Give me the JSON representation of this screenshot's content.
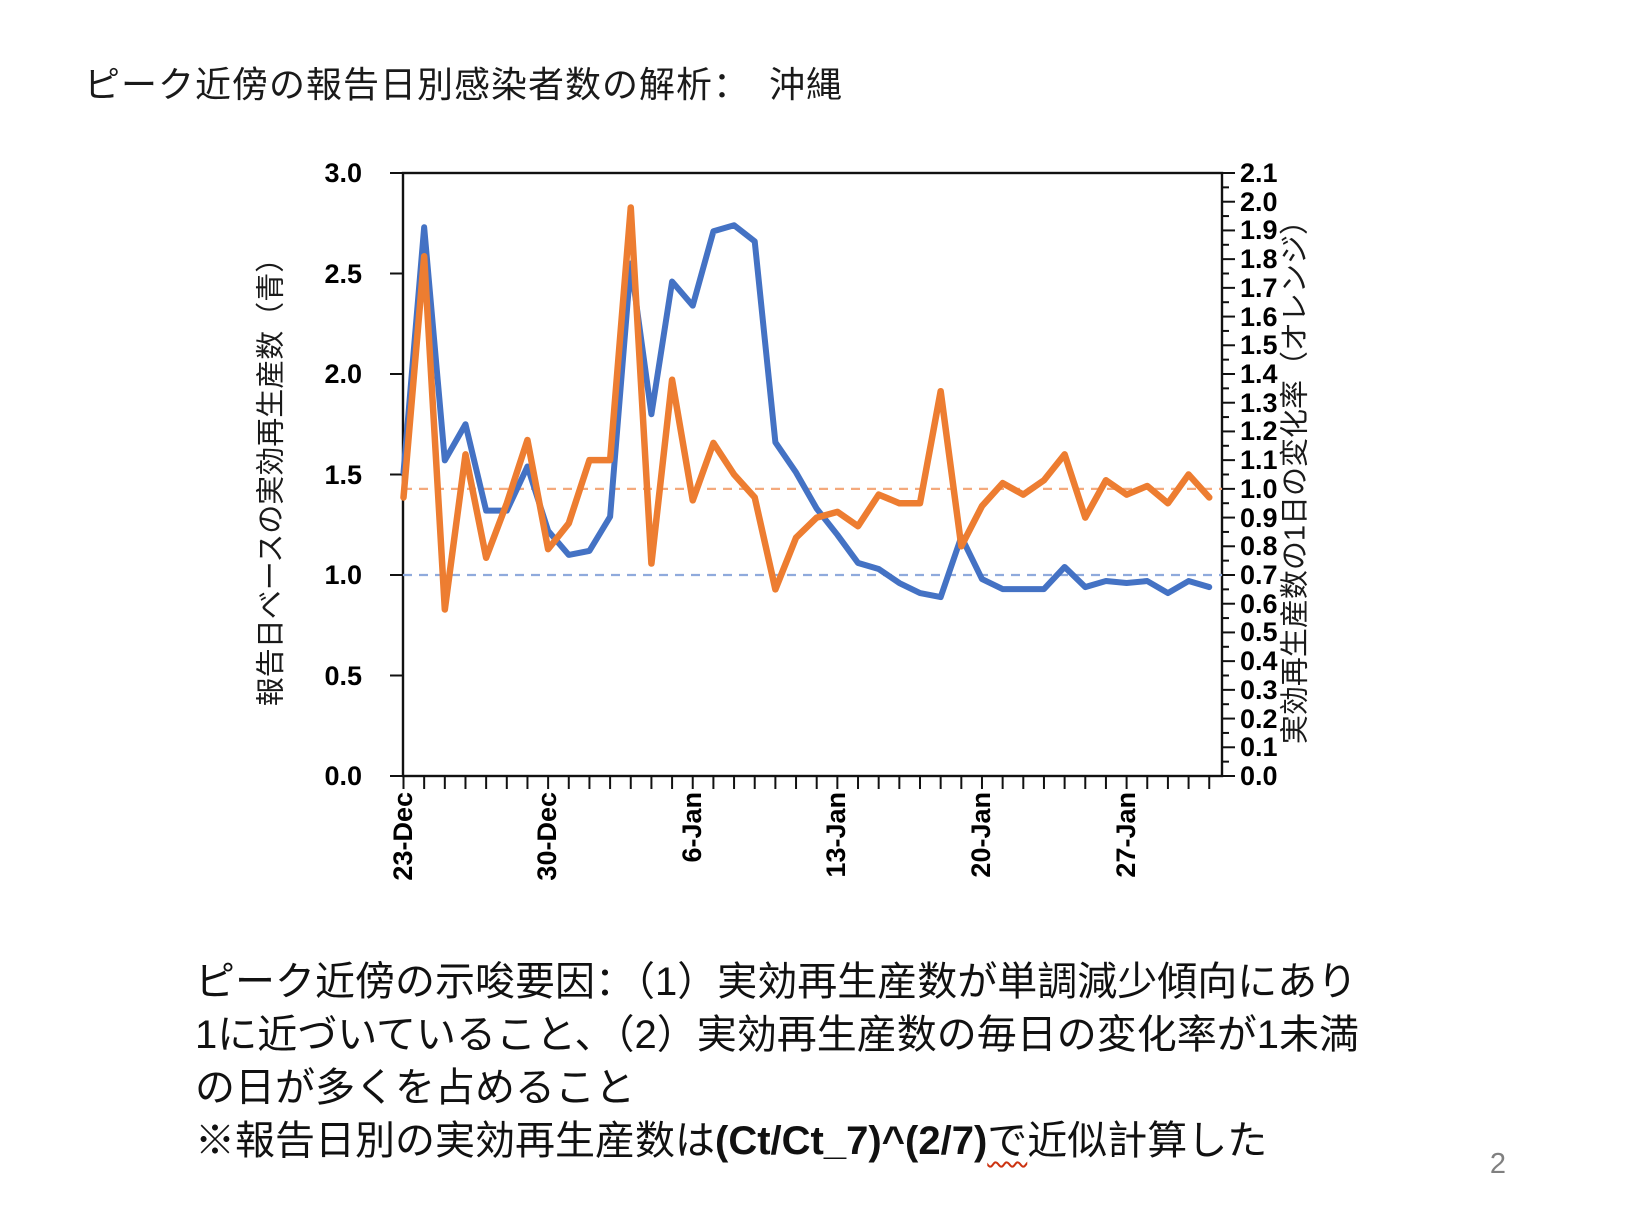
{
  "page": {
    "title": "ピーク近傍の報告日別感染者数の解析：　沖縄",
    "page_number": "2"
  },
  "caption": {
    "line1": "ピーク近傍の示唆要因：（1）実効再生産数が単調減少傾向にあり",
    "line2": "1に近づいていること、（2）実効再生産数の毎日の変化率が1未満",
    "line3": "の日が多くを占めること",
    "line4_pre": "※報告日別の実効再生産数は",
    "line4_formula": "(Ct/Ct_7)^(2/7)",
    "line4_particle": "で",
    "line4_post": "近似計算した"
  },
  "chart_data": {
    "type": "line",
    "grid": false,
    "legend": "none (axis titles indicate series colors)",
    "categories": [
      "23-Dec",
      "24-Dec",
      "25-Dec",
      "26-Dec",
      "27-Dec",
      "28-Dec",
      "29-Dec",
      "30-Dec",
      "31-Dec",
      "1-Jan",
      "2-Jan",
      "3-Jan",
      "4-Jan",
      "5-Jan",
      "6-Jan",
      "7-Jan",
      "8-Jan",
      "9-Jan",
      "10-Jan",
      "11-Jan",
      "12-Jan",
      "13-Jan",
      "14-Jan",
      "15-Jan",
      "16-Jan",
      "17-Jan",
      "18-Jan",
      "19-Jan",
      "20-Jan",
      "21-Jan",
      "22-Jan",
      "23-Jan",
      "24-Jan",
      "25-Jan",
      "26-Jan",
      "27-Jan",
      "28-Jan",
      "29-Jan",
      "30-Jan",
      "31-Jan"
    ],
    "x_tick_labels": [
      {
        "label": "23-Dec",
        "day": 0
      },
      {
        "label": "30-Dec",
        "day": 7
      },
      {
        "label": "6-Jan",
        "day": 14
      },
      {
        "label": "13-Jan",
        "day": 21
      },
      {
        "label": "20-Jan",
        "day": 28
      },
      {
        "label": "27-Jan",
        "day": 35
      }
    ],
    "left_axis": {
      "title": "報告日ベースの実効再生産数（青）",
      "min": 0.0,
      "max": 3.0,
      "tick_interval": 0.5,
      "tick_labels": [
        "3.0",
        "2.5",
        "2.0",
        "1.5",
        "1.0",
        "0.5",
        "0.0"
      ]
    },
    "right_axis": {
      "title": "実効再生産数の1日の変化率（オレンジ）",
      "min": 0.0,
      "max": 2.1,
      "tick_interval": 0.1,
      "minor_tick_interval": 0.05,
      "tick_labels": [
        "2.1",
        "2.0",
        "1.9",
        "1.8",
        "1.7",
        "1.6",
        "1.5",
        "1.4",
        "1.3",
        "1.2",
        "1.1",
        "1.0",
        "0.9",
        "0.8",
        "0.7",
        "0.6",
        "0.5",
        "0.4",
        "0.3",
        "0.2",
        "0.1",
        "0.0"
      ]
    },
    "series": [
      {
        "name": "報告日ベースの実効再生産数（青）",
        "axis": "left",
        "color": "#4472C4",
        "values": [
          1.51,
          2.73,
          1.57,
          1.75,
          1.32,
          1.32,
          1.54,
          1.22,
          1.1,
          1.12,
          1.29,
          2.55,
          1.8,
          2.46,
          2.34,
          2.71,
          2.74,
          2.66,
          1.66,
          1.51,
          1.33,
          1.2,
          1.06,
          1.03,
          0.96,
          0.91,
          0.89,
          1.19,
          0.98,
          0.93,
          0.93,
          0.93,
          1.04,
          0.94,
          0.97,
          0.96,
          0.97,
          0.91,
          0.97,
          0.94
        ]
      },
      {
        "name": "実効再生産数の1日の変化率（オレンジ）",
        "axis": "right",
        "color": "#ED7D31",
        "values": [
          0.97,
          1.81,
          0.58,
          1.12,
          0.76,
          0.95,
          1.17,
          0.79,
          0.88,
          1.1,
          1.1,
          1.98,
          0.74,
          1.38,
          0.96,
          1.16,
          1.05,
          0.97,
          0.65,
          0.83,
          0.9,
          0.92,
          0.87,
          0.98,
          0.95,
          0.95,
          1.34,
          0.8,
          0.94,
          1.02,
          0.98,
          1.03,
          1.12,
          0.9,
          1.03,
          0.98,
          1.01,
          0.95,
          1.05,
          0.97
        ]
      }
    ],
    "reference_lines": [
      {
        "axis": "left",
        "value": 1.0,
        "color": "#8FAADC",
        "style": "dashed"
      },
      {
        "axis": "right",
        "value": 1.0,
        "color": "#F4A97C",
        "style": "dashed"
      }
    ]
  }
}
